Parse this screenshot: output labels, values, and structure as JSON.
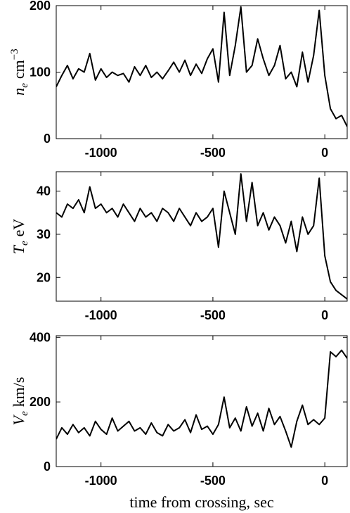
{
  "chart_data": [
    {
      "type": "line",
      "color": "#000000",
      "ylabel": {
        "symbol": "n",
        "subscript": "e",
        "unit": "cm",
        "superscript": "−3"
      },
      "xlim": [
        -1200,
        100
      ],
      "xticks": [
        -1000,
        -500,
        0
      ],
      "ylim": [
        0,
        200
      ],
      "yticks": [
        0,
        100,
        200
      ],
      "x": [
        -1200,
        -1175,
        -1150,
        -1125,
        -1100,
        -1075,
        -1050,
        -1025,
        -1000,
        -975,
        -950,
        -925,
        -900,
        -875,
        -850,
        -825,
        -800,
        -775,
        -750,
        -725,
        -700,
        -675,
        -650,
        -625,
        -600,
        -575,
        -550,
        -525,
        -500,
        -475,
        -450,
        -425,
        -400,
        -375,
        -350,
        -325,
        -300,
        -275,
        -250,
        -225,
        -200,
        -175,
        -150,
        -125,
        -100,
        -75,
        -50,
        -25,
        0,
        25,
        50,
        75,
        100
      ],
      "values": [
        78,
        95,
        110,
        90,
        105,
        100,
        128,
        88,
        105,
        92,
        100,
        95,
        98,
        85,
        108,
        95,
        110,
        92,
        100,
        90,
        102,
        115,
        100,
        118,
        95,
        112,
        98,
        120,
        135,
        85,
        190,
        95,
        140,
        198,
        100,
        110,
        150,
        120,
        95,
        110,
        140,
        90,
        100,
        78,
        130,
        85,
        125,
        193,
        95,
        45,
        30,
        35,
        18
      ]
    },
    {
      "type": "line",
      "color": "#000000",
      "ylabel": {
        "symbol": "T",
        "subscript": "e",
        "unit": "eV"
      },
      "xlim": [
        -1200,
        100
      ],
      "xticks": [
        -1000,
        -500,
        0
      ],
      "ylim": [
        14.5,
        44.5
      ],
      "yticks": [
        20,
        30,
        40
      ],
      "x": [
        -1200,
        -1175,
        -1150,
        -1125,
        -1100,
        -1075,
        -1050,
        -1025,
        -1000,
        -975,
        -950,
        -925,
        -900,
        -875,
        -850,
        -825,
        -800,
        -775,
        -750,
        -725,
        -700,
        -675,
        -650,
        -625,
        -600,
        -575,
        -550,
        -525,
        -500,
        -475,
        -450,
        -425,
        -400,
        -375,
        -350,
        -325,
        -300,
        -275,
        -250,
        -225,
        -200,
        -175,
        -150,
        -125,
        -100,
        -75,
        -50,
        -25,
        0,
        25,
        50,
        75,
        100
      ],
      "values": [
        35,
        34,
        37,
        36,
        38,
        35,
        41,
        36,
        37,
        35,
        36,
        34,
        37,
        35,
        33,
        36,
        34,
        35,
        33,
        36,
        35,
        33,
        36,
        34,
        32,
        35,
        33,
        34,
        36,
        27,
        40,
        35,
        30,
        44,
        33,
        42,
        32,
        35,
        31,
        34,
        32,
        28,
        33,
        26,
        34,
        30,
        32,
        43,
        25,
        19,
        17,
        16,
        15
      ]
    },
    {
      "type": "line",
      "color": "#000000",
      "ylabel": {
        "symbol": "V",
        "subscript": "e",
        "unit": "km/s"
      },
      "xlabel": "time from crossing, sec",
      "xlim": [
        -1200,
        100
      ],
      "xticks": [
        -1000,
        -500,
        0
      ],
      "ylim": [
        0,
        405
      ],
      "yticks": [
        0,
        200,
        400
      ],
      "x": [
        -1200,
        -1175,
        -1150,
        -1125,
        -1100,
        -1075,
        -1050,
        -1025,
        -1000,
        -975,
        -950,
        -925,
        -900,
        -875,
        -850,
        -825,
        -800,
        -775,
        -750,
        -725,
        -700,
        -675,
        -650,
        -625,
        -600,
        -575,
        -550,
        -525,
        -500,
        -475,
        -450,
        -425,
        -400,
        -375,
        -350,
        -325,
        -300,
        -275,
        -250,
        -225,
        -200,
        -175,
        -150,
        -125,
        -100,
        -75,
        -50,
        -25,
        0,
        25,
        50,
        75,
        100
      ],
      "values": [
        85,
        120,
        100,
        130,
        105,
        120,
        95,
        140,
        115,
        100,
        150,
        110,
        125,
        140,
        110,
        120,
        100,
        135,
        105,
        95,
        130,
        110,
        120,
        145,
        105,
        160,
        115,
        125,
        100,
        130,
        215,
        120,
        150,
        110,
        185,
        125,
        165,
        110,
        180,
        130,
        155,
        110,
        60,
        140,
        190,
        130,
        145,
        130,
        150,
        355,
        340,
        360,
        335
      ]
    }
  ]
}
